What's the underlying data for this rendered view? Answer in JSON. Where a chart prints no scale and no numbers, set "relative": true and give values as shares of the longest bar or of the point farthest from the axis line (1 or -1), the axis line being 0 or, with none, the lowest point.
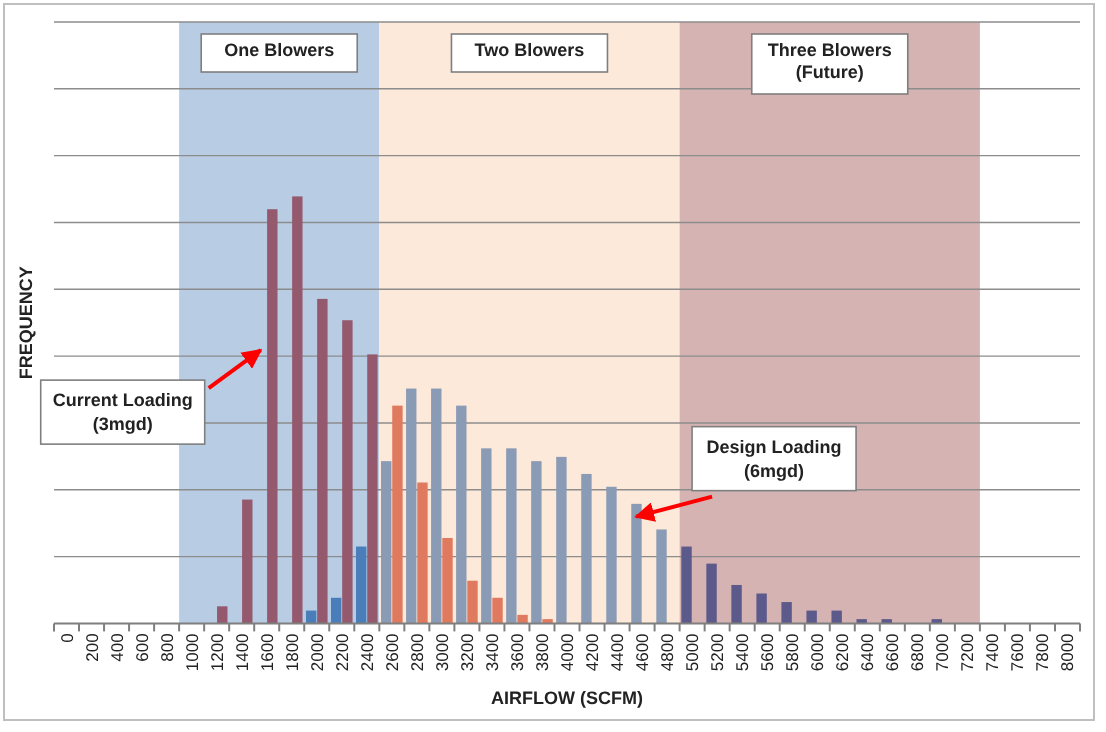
{
  "chart_data": {
    "type": "bar",
    "relative": true,
    "xlabel": "AIRFLOW (SCFM)",
    "ylabel": "FREQUENCY",
    "grid": "y",
    "categories": [
      "0",
      "200",
      "400",
      "600",
      "800",
      "1000",
      "1200",
      "1400",
      "1600",
      "1800",
      "2000",
      "2200",
      "2400",
      "2600",
      "2800",
      "3000",
      "3200",
      "3400",
      "3600",
      "3800",
      "4000",
      "4200",
      "4400",
      "4600",
      "4800",
      "5000",
      "5200",
      "5400",
      "5600",
      "5800",
      "6000",
      "6200",
      "6400",
      "6600",
      "6800",
      "7000",
      "7200",
      "7400",
      "7600",
      "7800",
      "8000"
    ],
    "series": [
      {
        "values": [
          null,
          null,
          null,
          null,
          null,
          null,
          null,
          null,
          null,
          null,
          0.03,
          0.06,
          0.18,
          0.38,
          0.55,
          0.55,
          0.51,
          0.41,
          0.41,
          0.38,
          0.39,
          0.35,
          0.32,
          0.28,
          0.22,
          0.18,
          0.14,
          0.09,
          0.07,
          0.05,
          0.03,
          0.03,
          0.01,
          0.01,
          null,
          0.01,
          null,
          null,
          null,
          null,
          null
        ],
        "colors": [
          null,
          null,
          null,
          null,
          null,
          null,
          null,
          null,
          null,
          null,
          "#4a7ebb",
          "#4a7ebb",
          "#4a7ebb",
          "#8a9bb5",
          "#8a9bb5",
          "#8a9bb5",
          "#8a9bb5",
          "#8a9bb5",
          "#8a9bb5",
          "#8a9bb5",
          "#8a9bb5",
          "#8a9bb5",
          "#8a9bb5",
          "#8a9bb5",
          "#8a9bb5",
          "#5c5a8a",
          "#5c5a8a",
          "#5c5a8a",
          "#5c5a8a",
          "#5c5a8a",
          "#5c5a8a",
          "#5c5a8a",
          "#5c5a8a",
          "#5c5a8a",
          null,
          "#5c5a8a",
          null,
          null,
          null,
          null,
          null
        ]
      },
      {
        "values": [
          null,
          null,
          null,
          null,
          null,
          null,
          0.04,
          0.29,
          0.97,
          1,
          0.76,
          0.71,
          0.63,
          0.51,
          0.33,
          0.2,
          0.1,
          0.06,
          0.02,
          0.01,
          null,
          null,
          null,
          null,
          null,
          null,
          null,
          null,
          null,
          null,
          null,
          null,
          null,
          null,
          null,
          null,
          null,
          null,
          null,
          null,
          null
        ],
        "colors": [
          null,
          null,
          null,
          null,
          null,
          null,
          "#95596e",
          "#95596e",
          "#95596e",
          "#95596e",
          "#95596e",
          "#95596e",
          "#95596e",
          "#e07a5f",
          "#e07a5f",
          "#e07a5f",
          "#e07a5f",
          "#e07a5f",
          "#e07a5f",
          "#e07a5f",
          null,
          null,
          null,
          null,
          null,
          null,
          null,
          null,
          null,
          null,
          null,
          null,
          null,
          null,
          null,
          null,
          null,
          null,
          null,
          null,
          null
        ]
      }
    ],
    "bands": [
      {
        "axis": "x",
        "from": "1000",
        "to": "2400",
        "label": "One Blowers",
        "color": "#b8cce4"
      },
      {
        "axis": "x",
        "from": "2600",
        "to": "4800",
        "label": "Two Blowers",
        "color": "#fde9d9"
      },
      {
        "axis": "x",
        "from": "5000",
        "to": "7200",
        "label": "Three Blowers\n(Future)",
        "color": "#d5b3b3"
      }
    ],
    "annotations": [
      {
        "text": "Current Loading\n(3mgd)",
        "x": "1600",
        "y": 0.64
      },
      {
        "text": "Design Loading\n(6mgd)",
        "x": "4600",
        "y": 0.25
      }
    ]
  }
}
